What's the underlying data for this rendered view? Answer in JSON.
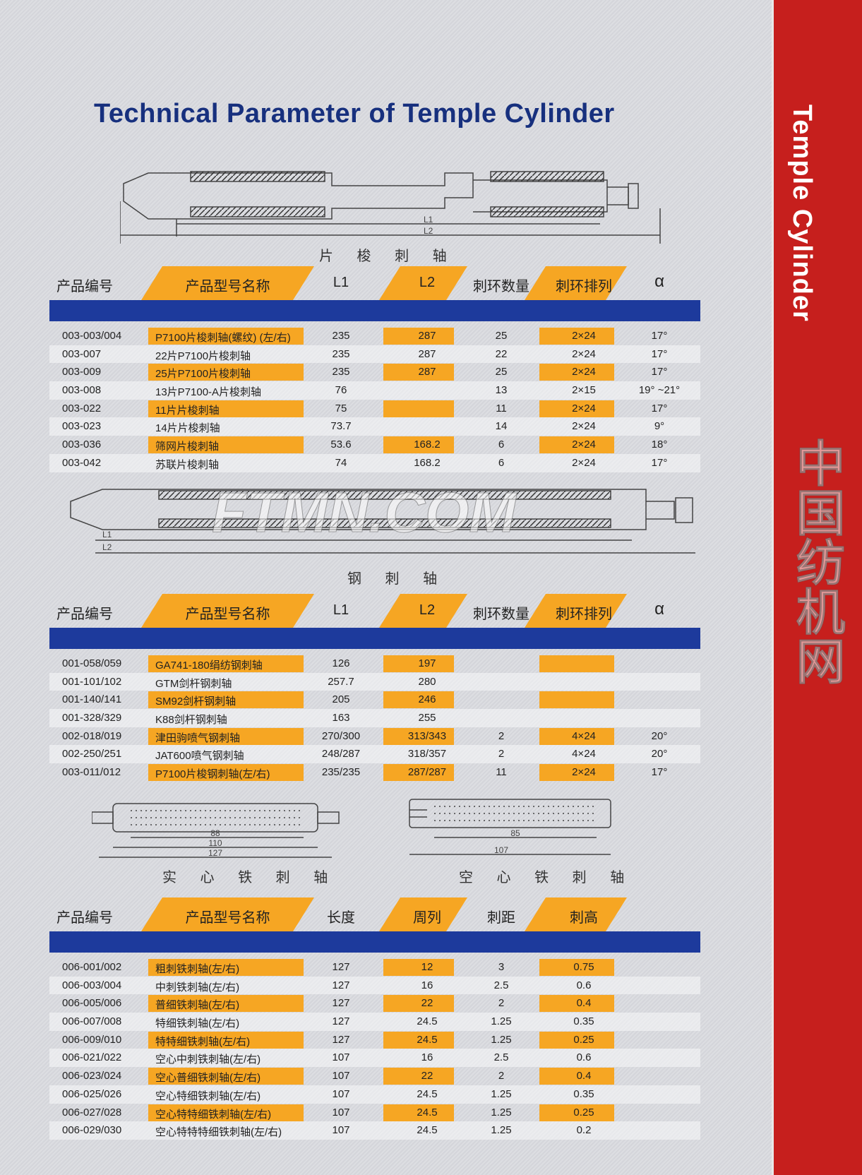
{
  "title": "Technical Parameter of Temple Cylinder",
  "side_title": "Temple Cylinder",
  "colors": {
    "blue": "#1d3a9c",
    "orange": "#f6a623",
    "red": "#c61f1d",
    "background": "#d8d9de"
  },
  "watermark": {
    "latin": "FTMN.COM",
    "chinese": "中国纺机网"
  },
  "drawings": {
    "blade": {
      "caption": "片 梭 刺 轴",
      "dims": [
        "L1",
        "L2"
      ]
    },
    "steel": {
      "caption": "钢 刺 轴",
      "dims": [
        "L1",
        "L2"
      ]
    },
    "solid_iron": {
      "caption": "实 心 铁 刺 轴",
      "dims": [
        "88",
        "110",
        "127"
      ]
    },
    "hollow_iron": {
      "caption": "空 心 铁 刺 轴",
      "dims": [
        "85",
        "107"
      ]
    }
  },
  "tables": [
    {
      "headers": [
        "产品编号",
        "产品型号名称",
        "L1",
        "L2",
        "刺环数量",
        "刺环排列",
        "α"
      ],
      "rows": [
        [
          "003-003/004",
          "P7100片梭刺轴(螺纹) (左/右)",
          "235",
          "287",
          "25",
          "2×24",
          "17°"
        ],
        [
          "003-007",
          "22片P7100片梭刺轴",
          "235",
          "287",
          "22",
          "2×24",
          "17°"
        ],
        [
          "003-009",
          "25片P7100片梭刺轴",
          "235",
          "287",
          "25",
          "2×24",
          "17°"
        ],
        [
          "003-008",
          "13片P7100-A片梭刺轴",
          "76",
          "",
          "13",
          "2×15",
          "19° ~21°"
        ],
        [
          "003-022",
          "11片片梭刺轴",
          "75",
          "",
          "11",
          "2×24",
          "17°"
        ],
        [
          "003-023",
          "14片片梭刺轴",
          "73.7",
          "",
          "14",
          "2×24",
          "9°"
        ],
        [
          "003-036",
          "筛网片梭刺轴",
          "53.6",
          "168.2",
          "6",
          "2×24",
          "18°"
        ],
        [
          "003-042",
          "苏联片梭刺轴",
          "74",
          "168.2",
          "6",
          "2×24",
          "17°"
        ]
      ]
    },
    {
      "headers": [
        "产品编号",
        "产品型号名称",
        "L1",
        "L2",
        "刺环数量",
        "刺环排列",
        "α"
      ],
      "rows": [
        [
          "001-058/059",
          "GA741-180绢纺钢刺轴",
          "126",
          "197",
          "",
          "",
          ""
        ],
        [
          "001-101/102",
          "GTM剑杆钢刺轴",
          "257.7",
          "280",
          "",
          "",
          ""
        ],
        [
          "001-140/141",
          "SM92剑杆钢刺轴",
          "205",
          "246",
          "",
          "",
          ""
        ],
        [
          "001-328/329",
          "K88剑杆钢刺轴",
          "163",
          "255",
          "",
          "",
          ""
        ],
        [
          "002-018/019",
          "津田驹喷气钢刺轴",
          "270/300",
          "313/343",
          "2",
          "4×24",
          "20°"
        ],
        [
          "002-250/251",
          "JAT600喷气钢刺轴",
          "248/287",
          "318/357",
          "2",
          "4×24",
          "20°"
        ],
        [
          "003-011/012",
          "P7100片梭钢刺轴(左/右)",
          "235/235",
          "287/287",
          "11",
          "2×24",
          "17°"
        ]
      ]
    },
    {
      "headers": [
        "产品编号",
        "产品型号名称",
        "长度",
        "周列",
        "刺距",
        "刺高",
        ""
      ],
      "rows": [
        [
          "006-001/002",
          "粗刺铁刺轴(左/右)",
          "127",
          "12",
          "3",
          "0.75",
          ""
        ],
        [
          "006-003/004",
          "中刺铁刺轴(左/右)",
          "127",
          "16",
          "2.5",
          "0.6",
          ""
        ],
        [
          "006-005/006",
          "普细铁刺轴(左/右)",
          "127",
          "22",
          "2",
          "0.4",
          ""
        ],
        [
          "006-007/008",
          "特细铁刺轴(左/右)",
          "127",
          "24.5",
          "1.25",
          "0.35",
          ""
        ],
        [
          "006-009/010",
          "特特细铁刺轴(左/右)",
          "127",
          "24.5",
          "1.25",
          "0.25",
          ""
        ],
        [
          "006-021/022",
          "空心中刺铁刺轴(左/右)",
          "107",
          "16",
          "2.5",
          "0.6",
          ""
        ],
        [
          "006-023/024",
          "空心普细铁刺轴(左/右)",
          "107",
          "22",
          "2",
          "0.4",
          ""
        ],
        [
          "006-025/026",
          "空心特细铁刺轴(左/右)",
          "107",
          "24.5",
          "1.25",
          "0.35",
          ""
        ],
        [
          "006-027/028",
          "空心特特细铁刺轴(左/右)",
          "107",
          "24.5",
          "1.25",
          "0.25",
          ""
        ],
        [
          "006-029/030",
          "空心特特特细铁刺轴(左/右)",
          "107",
          "24.5",
          "1.25",
          "0.2",
          ""
        ]
      ]
    }
  ]
}
